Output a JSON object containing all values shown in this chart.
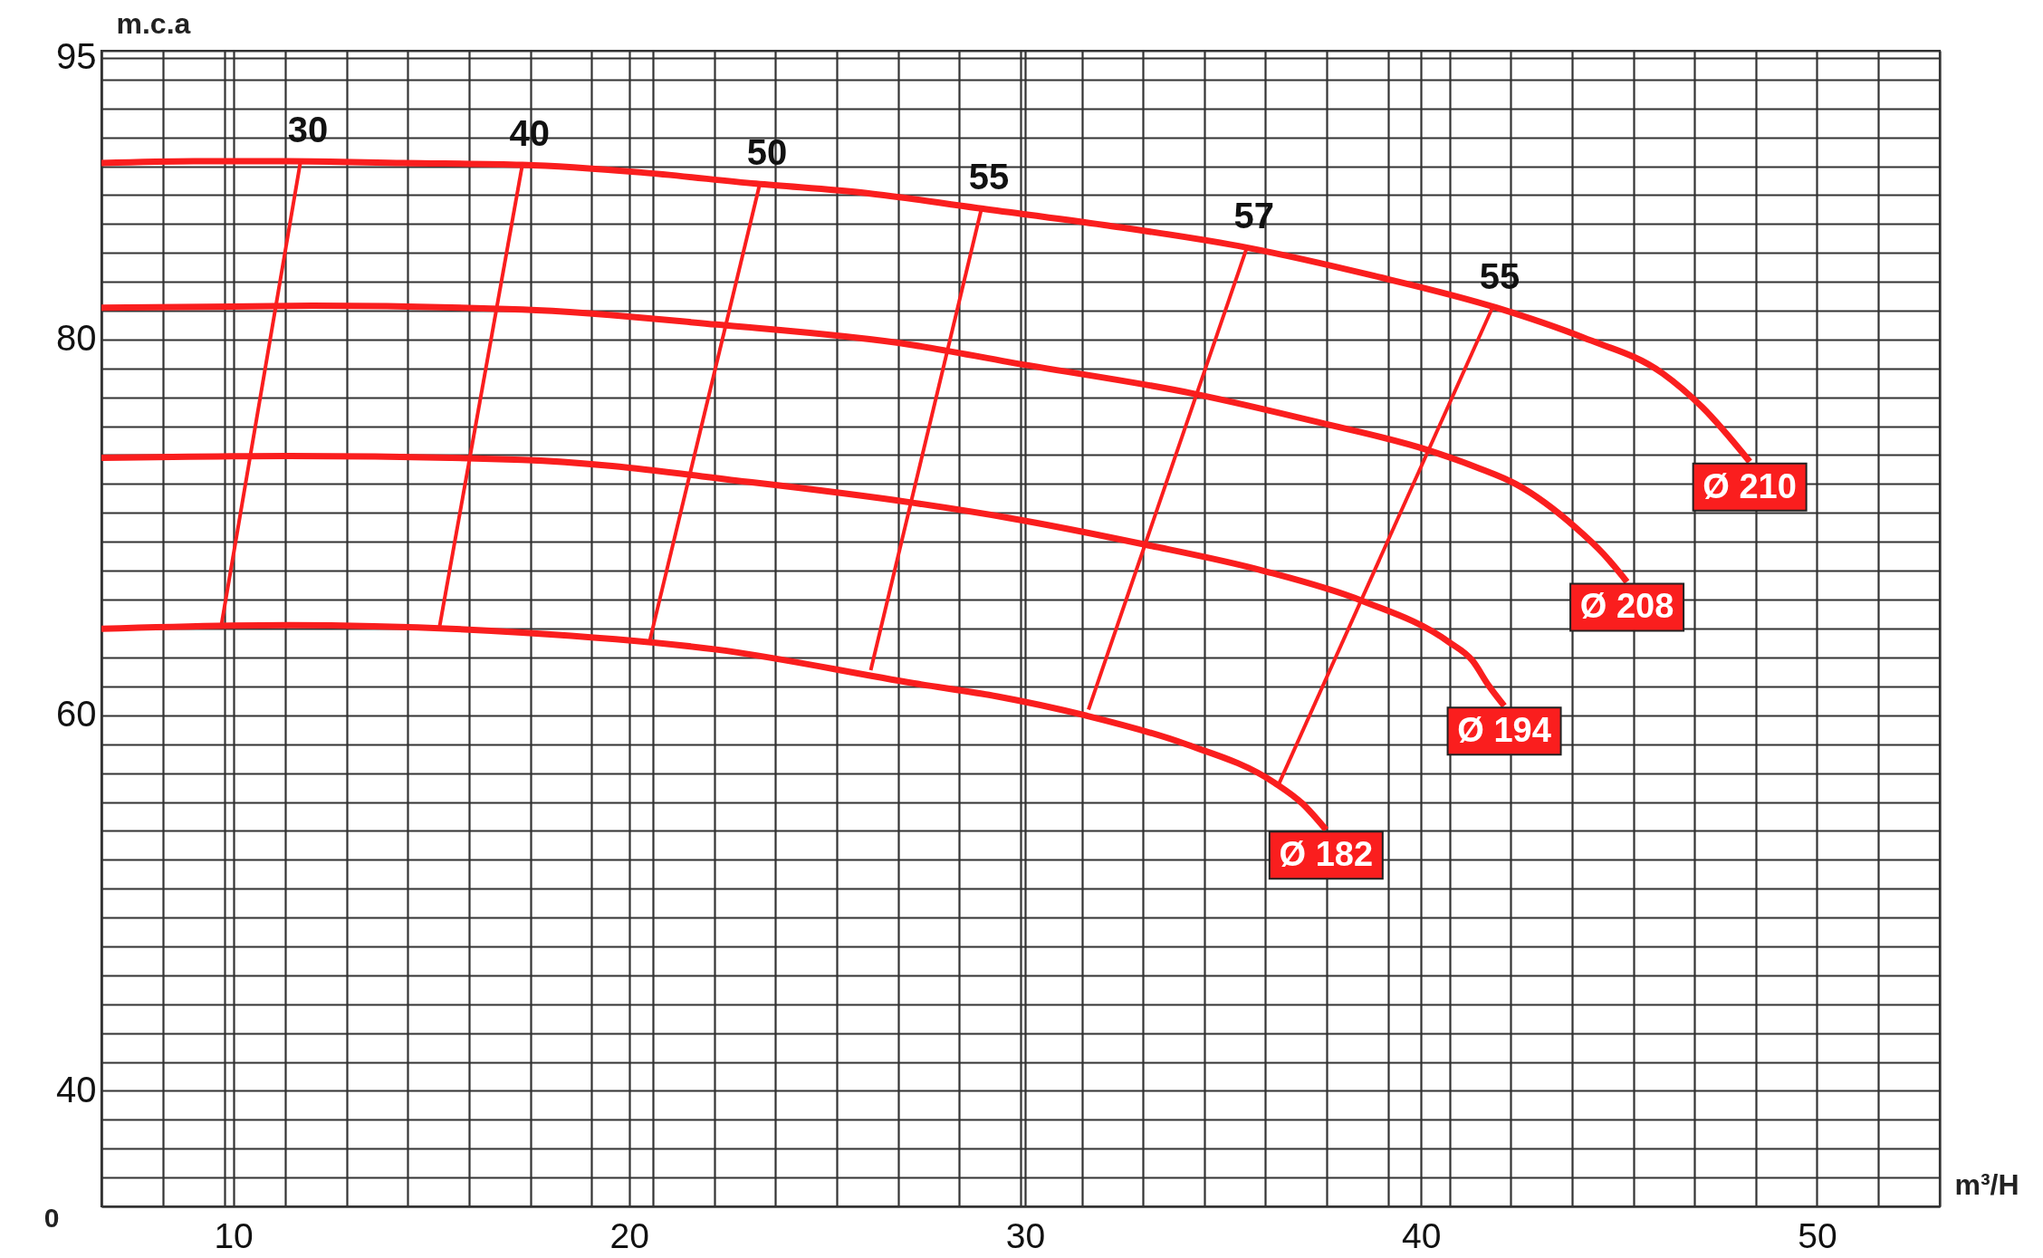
{
  "chart_data": {
    "type": "line",
    "xlabel": "m³/H",
    "ylabel": "m.c.a",
    "xlim": [
      6.67,
      53.1
    ],
    "ylim": [
      33.85,
      95.38
    ],
    "xticks": [
      {
        "value": 6.67,
        "label": null
      },
      {
        "value": 8.22,
        "label": null
      },
      {
        "value": 9.77,
        "label": null
      },
      10,
      {
        "value": 11.31,
        "label": null
      },
      {
        "value": 12.86,
        "label": null
      },
      {
        "value": 14.41,
        "label": null
      },
      {
        "value": 15.96,
        "label": null
      },
      {
        "value": 17.5,
        "label": null
      },
      {
        "value": 19.05,
        "label": null
      },
      20,
      {
        "value": 20.6,
        "label": null
      },
      {
        "value": 22.15,
        "label": null
      },
      {
        "value": 23.69,
        "label": null
      },
      {
        "value": 25.24,
        "label": null
      },
      {
        "value": 26.79,
        "label": null
      },
      {
        "value": 28.34,
        "label": null
      },
      {
        "value": 29.88,
        "label": null
      },
      30,
      {
        "value": 31.43,
        "label": null
      },
      {
        "value": 32.98,
        "label": null
      },
      {
        "value": 34.53,
        "label": null
      },
      {
        "value": 36.07,
        "label": null
      },
      {
        "value": 37.62,
        "label": null
      },
      {
        "value": 39.17,
        "label": null
      },
      40,
      {
        "value": 40.72,
        "label": null
      },
      {
        "value": 42.26,
        "label": null
      },
      {
        "value": 43.81,
        "label": null
      },
      {
        "value": 45.36,
        "label": null
      },
      {
        "value": 46.91,
        "label": null
      },
      {
        "value": 48.45,
        "label": null
      },
      50,
      {
        "value": 51.55,
        "label": null
      },
      {
        "value": 53.1,
        "label": null
      }
    ],
    "yticks": [
      {
        "value": 33.85,
        "label": null
      },
      {
        "value": 35.38,
        "label": null
      },
      {
        "value": 36.92,
        "label": null
      },
      {
        "value": 38.46,
        "label": null
      },
      40,
      {
        "value": 41.54,
        "label": null
      },
      {
        "value": 43.08,
        "label": null
      },
      {
        "value": 44.62,
        "label": null
      },
      {
        "value": 46.15,
        "label": null
      },
      {
        "value": 47.69,
        "label": null
      },
      {
        "value": 49.23,
        "label": null
      },
      {
        "value": 50.77,
        "label": null
      },
      {
        "value": 52.31,
        "label": null
      },
      {
        "value": 53.85,
        "label": null
      },
      {
        "value": 55.38,
        "label": null
      },
      {
        "value": 56.92,
        "label": null
      },
      {
        "value": 58.46,
        "label": null
      },
      60,
      {
        "value": 61.54,
        "label": null
      },
      {
        "value": 63.08,
        "label": null
      },
      {
        "value": 64.62,
        "label": null
      },
      {
        "value": 66.15,
        "label": null
      },
      {
        "value": 67.69,
        "label": null
      },
      {
        "value": 69.23,
        "label": null
      },
      {
        "value": 70.77,
        "label": null
      },
      {
        "value": 72.31,
        "label": null
      },
      {
        "value": 73.85,
        "label": null
      },
      {
        "value": 75.38,
        "label": null
      },
      {
        "value": 76.92,
        "label": null
      },
      {
        "value": 78.46,
        "label": null
      },
      80,
      {
        "value": 81.54,
        "label": null
      },
      {
        "value": 83.08,
        "label": null
      },
      {
        "value": 84.62,
        "label": null
      },
      {
        "value": 86.15,
        "label": null
      },
      {
        "value": 87.69,
        "label": null
      },
      {
        "value": 89.23,
        "label": null
      },
      {
        "value": 90.77,
        "label": null
      },
      {
        "value": 92.31,
        "label": null
      },
      {
        "value": 93.85,
        "label": null
      },
      95,
      {
        "value": 95.38,
        "label": null
      }
    ],
    "grid": true,
    "series": [
      {
        "name": "Ø 210",
        "color": "#fa1e1e",
        "x": [
          6.67,
          9.0,
          11.4,
          14.3,
          17.3,
          20.3,
          23.2,
          26.0,
          28.8,
          32.0,
          35.6,
          38.8,
          41.9,
          44.1,
          46.1,
          47.1,
          48.3
        ],
        "values": [
          89.4,
          89.5,
          89.5,
          89.4,
          89.3,
          88.9,
          88.3,
          87.8,
          87.0,
          86.1,
          84.9,
          83.4,
          81.7,
          80.1,
          78.2,
          76.4,
          73.5
        ]
      },
      {
        "name": "Ø 208",
        "color": "#fa1e1e",
        "x": [
          6.67,
          12.0,
          17.3,
          22.2,
          27.2,
          29.6,
          34.3,
          37.4,
          40.2,
          41.4,
          42.4,
          43.9,
          44.6,
          45.2
        ],
        "values": [
          81.7,
          81.8,
          81.6,
          80.8,
          79.7,
          78.8,
          77.1,
          75.6,
          74.1,
          73.2,
          72.3,
          70.0,
          68.6,
          67.1
        ]
      },
      {
        "name": "Ø 194",
        "color": "#fa1e1e",
        "x": [
          6.67,
          11.4,
          17.3,
          23.1,
          27.2,
          29.6,
          33.0,
          36.0,
          38.5,
          40.7,
          41.3,
          41.7,
          42.1
        ],
        "values": [
          73.7,
          73.8,
          73.6,
          72.4,
          71.3,
          70.5,
          69.1,
          67.7,
          66.1,
          63.9,
          62.9,
          61.6,
          60.5
        ]
      },
      {
        "name": "Ø 182",
        "color": "#fa1e1e",
        "x": [
          6.67,
          11.4,
          17.3,
          22.2,
          27.2,
          29.3,
          31.5,
          34.0,
          36.3,
          37.0,
          37.6
        ],
        "values": [
          64.6,
          64.8,
          64.4,
          63.5,
          61.7,
          61.0,
          60.0,
          58.5,
          56.4,
          55.3,
          53.9
        ]
      },
      {
        "color": "#fa1e1e",
        "x": [
          11.7,
          9.7
        ],
        "values": [
          89.5,
          64.8
        ]
      },
      {
        "color": "#fa1e1e",
        "x": [
          17.3,
          15.2
        ],
        "values": [
          89.3,
          64.6
        ]
      },
      {
        "color": "#fa1e1e",
        "x": [
          23.3,
          20.5
        ],
        "values": [
          88.3,
          63.8
        ]
      },
      {
        "color": "#fa1e1e",
        "x": [
          28.9,
          26.1
        ],
        "values": [
          87.0,
          62.4
        ]
      },
      {
        "color": "#fa1e1e",
        "x": [
          35.6,
          31.6
        ],
        "values": [
          84.9,
          60.3
        ]
      },
      {
        "color": "#fa1e1e",
        "x": [
          41.8,
          36.4
        ],
        "values": [
          81.7,
          56.3
        ]
      }
    ],
    "annotations": [
      {
        "text": "30",
        "x": 11.7,
        "y": 89.5
      },
      {
        "text": "40",
        "x": 17.3,
        "y": 89.3
      },
      {
        "text": "50",
        "x": 23.3,
        "y": 88.3
      },
      {
        "text": "55",
        "x": 28.9,
        "y": 87.0
      },
      {
        "text": "57",
        "x": 35.6,
        "y": 84.9
      },
      {
        "text": "55",
        "x": 41.8,
        "y": 81.7
      },
      "0"
    ]
  }
}
